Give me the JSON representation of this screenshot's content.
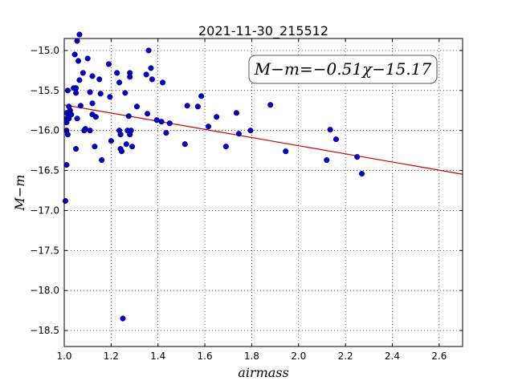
{
  "chart_data": {
    "type": "scatter",
    "title": "2021-11-30_215512",
    "xlabel": "airmass",
    "ylabel": "M−m",
    "xlim": [
      1.0,
      2.7
    ],
    "ylim": [
      -18.7,
      -14.85
    ],
    "y_inverted": true,
    "grid": true,
    "x_ticks": [
      1.0,
      1.2,
      1.4,
      1.6,
      1.8,
      2.0,
      2.2,
      2.4,
      2.6
    ],
    "x_tick_labels": [
      "1.0",
      "1.2",
      "1.4",
      "1.6",
      "1.8",
      "2.0",
      "2.2",
      "2.4",
      "2.6"
    ],
    "y_ticks": [
      -15.0,
      -15.5,
      -16.0,
      -16.5,
      -17.0,
      -17.5,
      -18.0,
      -18.5
    ],
    "y_tick_labels": [
      "−15.0",
      "−15.5",
      "−16.0",
      "−16.5",
      "−17.0",
      "−17.5",
      "−18.0",
      "−18.5"
    ],
    "annotation": "M−m=−0.51χ−15.17",
    "annotation_position": "top-right",
    "marker_color": "#0000cc",
    "fit_color": "#cc0000",
    "fit": {
      "slope": -0.51,
      "intercept": -15.17
    },
    "points": [
      [
        1.005,
        -16.88
      ],
      [
        1.01,
        -16.43
      ],
      [
        1.01,
        -15.9
      ],
      [
        1.01,
        -16.0
      ],
      [
        1.01,
        -15.85
      ],
      [
        1.01,
        -15.78
      ],
      [
        1.015,
        -15.5
      ],
      [
        1.015,
        -16.05
      ],
      [
        1.02,
        -15.7
      ],
      [
        1.02,
        -15.8
      ],
      [
        1.02,
        -15.85
      ],
      [
        1.025,
        -15.75
      ],
      [
        1.03,
        -15.8
      ],
      [
        1.04,
        -15.47
      ],
      [
        1.045,
        -15.05
      ],
      [
        1.05,
        -15.47
      ],
      [
        1.05,
        -15.53
      ],
      [
        1.05,
        -16.23
      ],
      [
        1.055,
        -14.88
      ],
      [
        1.055,
        -15.85
      ],
      [
        1.06,
        -15.13
      ],
      [
        1.065,
        -14.8
      ],
      [
        1.065,
        -15.37
      ],
      [
        1.07,
        -15.69
      ],
      [
        1.08,
        -15.28
      ],
      [
        1.085,
        -16.0
      ],
      [
        1.09,
        -15.98
      ],
      [
        1.1,
        -15.1
      ],
      [
        1.11,
        -15.52
      ],
      [
        1.11,
        -16.0
      ],
      [
        1.12,
        -15.32
      ],
      [
        1.12,
        -15.66
      ],
      [
        1.12,
        -15.8
      ],
      [
        1.13,
        -16.2
      ],
      [
        1.135,
        -15.83
      ],
      [
        1.15,
        -15.36
      ],
      [
        1.155,
        -15.54
      ],
      [
        1.16,
        -16.37
      ],
      [
        1.19,
        -15.17
      ],
      [
        1.195,
        -15.58
      ],
      [
        1.2,
        -16.13
      ],
      [
        1.225,
        -15.28
      ],
      [
        1.235,
        -16.0
      ],
      [
        1.235,
        -15.4
      ],
      [
        1.24,
        -16.05
      ],
      [
        1.24,
        -16.23
      ],
      [
        1.245,
        -16.26
      ],
      [
        1.25,
        -18.35
      ],
      [
        1.26,
        -15.53
      ],
      [
        1.265,
        -16.17
      ],
      [
        1.27,
        -16.0
      ],
      [
        1.275,
        -15.82
      ],
      [
        1.28,
        -15.28
      ],
      [
        1.28,
        -15.33
      ],
      [
        1.28,
        -16.05
      ],
      [
        1.285,
        -16.0
      ],
      [
        1.29,
        -16.2
      ],
      [
        1.31,
        -15.7
      ],
      [
        1.35,
        -15.3
      ],
      [
        1.355,
        -15.79
      ],
      [
        1.36,
        -15.0
      ],
      [
        1.37,
        -15.22
      ],
      [
        1.375,
        -15.36
      ],
      [
        1.395,
        -15.87
      ],
      [
        1.415,
        -15.89
      ],
      [
        1.42,
        -15.4
      ],
      [
        1.435,
        -16.03
      ],
      [
        1.45,
        -15.91
      ],
      [
        1.515,
        -16.17
      ],
      [
        1.525,
        -15.69
      ],
      [
        1.57,
        -15.7
      ],
      [
        1.585,
        -15.57
      ],
      [
        1.615,
        -15.95
      ],
      [
        1.65,
        -15.83
      ],
      [
        1.69,
        -16.2
      ],
      [
        1.735,
        -15.78
      ],
      [
        1.745,
        -16.04
      ],
      [
        1.795,
        -16.0
      ],
      [
        1.88,
        -15.68
      ],
      [
        1.945,
        -16.26
      ],
      [
        2.12,
        -16.37
      ],
      [
        2.135,
        -15.99
      ],
      [
        2.16,
        -16.11
      ],
      [
        2.25,
        -16.33
      ],
      [
        2.27,
        -16.54
      ]
    ]
  }
}
